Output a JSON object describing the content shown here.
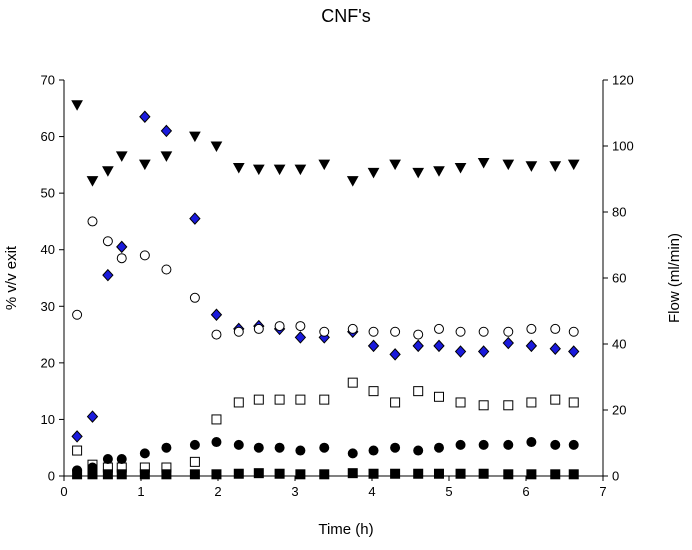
{
  "chart_data": {
    "type": "scatter",
    "title": "CNF's",
    "xlabel": "Time (h)",
    "ylabel": "% v/v exit",
    "y2label": "Flow (ml/min)",
    "xlim": [
      0,
      7
    ],
    "ylim": [
      0,
      70
    ],
    "y2lim": [
      0,
      120
    ],
    "xticks": [
      "0",
      "1",
      "2",
      "3",
      "4",
      "5",
      "6",
      "7"
    ],
    "yticks": [
      "0",
      "10",
      "20",
      "30",
      "40",
      "50",
      "60",
      "70"
    ],
    "y2ticks": [
      "0",
      "20",
      "40",
      "60",
      "80",
      "100",
      "120"
    ],
    "grid": false,
    "legend": "none",
    "accent_color": "#1a1adc",
    "series": [
      {
        "marker": "triangle-down-filled",
        "axis": "right",
        "color": "#000000",
        "points": [
          [
            0.17,
            112.5
          ],
          [
            0.37,
            89.5
          ],
          [
            0.57,
            92.5
          ],
          [
            0.75,
            97
          ],
          [
            1.05,
            94.5
          ],
          [
            1.33,
            97
          ],
          [
            1.7,
            103
          ],
          [
            1.98,
            100
          ],
          [
            2.27,
            93.5
          ],
          [
            2.53,
            93
          ],
          [
            2.8,
            93
          ],
          [
            3.07,
            93
          ],
          [
            3.38,
            94.5
          ],
          [
            3.75,
            89.5
          ],
          [
            4.02,
            92
          ],
          [
            4.3,
            94.5
          ],
          [
            4.6,
            92
          ],
          [
            4.87,
            92.5
          ],
          [
            5.15,
            93.5
          ],
          [
            5.45,
            95
          ],
          [
            5.77,
            94.5
          ],
          [
            6.07,
            94
          ],
          [
            6.38,
            94
          ],
          [
            6.62,
            94.5
          ]
        ]
      },
      {
        "marker": "diamond-filled",
        "axis": "left",
        "color": "#1a1adc",
        "points": [
          [
            0.17,
            7
          ],
          [
            0.37,
            10.5
          ],
          [
            0.57,
            35.5
          ],
          [
            0.75,
            40.5
          ],
          [
            1.05,
            63.5
          ],
          [
            1.33,
            61
          ],
          [
            1.7,
            45.5
          ],
          [
            1.98,
            28.5
          ],
          [
            2.27,
            26
          ],
          [
            2.53,
            26.5
          ],
          [
            2.8,
            26
          ],
          [
            3.07,
            24.5
          ],
          [
            3.38,
            24.5
          ],
          [
            3.75,
            25.5
          ],
          [
            4.02,
            23
          ],
          [
            4.3,
            21.5
          ],
          [
            4.6,
            23
          ],
          [
            4.87,
            23
          ],
          [
            5.15,
            22
          ],
          [
            5.45,
            22
          ],
          [
            5.77,
            23.5
          ],
          [
            6.07,
            23
          ],
          [
            6.38,
            22.5
          ],
          [
            6.62,
            22
          ]
        ]
      },
      {
        "marker": "circle-open",
        "axis": "left",
        "color": "#000000",
        "points": [
          [
            0.17,
            28.5
          ],
          [
            0.37,
            45
          ],
          [
            0.57,
            41.5
          ],
          [
            0.75,
            38.5
          ],
          [
            1.05,
            39
          ],
          [
            1.33,
            36.5
          ],
          [
            1.7,
            31.5
          ],
          [
            1.98,
            25
          ],
          [
            2.27,
            25.5
          ],
          [
            2.53,
            26
          ],
          [
            2.8,
            26.5
          ],
          [
            3.07,
            26.5
          ],
          [
            3.38,
            25.5
          ],
          [
            3.75,
            26
          ],
          [
            4.02,
            25.5
          ],
          [
            4.3,
            25.5
          ],
          [
            4.6,
            25
          ],
          [
            4.87,
            26
          ],
          [
            5.15,
            25.5
          ],
          [
            5.45,
            25.5
          ],
          [
            5.77,
            25.5
          ],
          [
            6.07,
            26
          ],
          [
            6.38,
            26
          ],
          [
            6.62,
            25.5
          ]
        ]
      },
      {
        "marker": "square-open",
        "axis": "left",
        "color": "#000000",
        "points": [
          [
            0.17,
            4.5
          ],
          [
            0.37,
            2
          ],
          [
            0.57,
            1.5
          ],
          [
            0.75,
            1.5
          ],
          [
            1.05,
            1.5
          ],
          [
            1.33,
            1.5
          ],
          [
            1.7,
            2.5
          ],
          [
            1.98,
            10
          ],
          [
            2.27,
            13
          ],
          [
            2.53,
            13.5
          ],
          [
            2.8,
            13.5
          ],
          [
            3.07,
            13.5
          ],
          [
            3.38,
            13.5
          ],
          [
            3.75,
            16.5
          ],
          [
            4.02,
            15
          ],
          [
            4.3,
            13
          ],
          [
            4.6,
            15
          ],
          [
            4.87,
            14
          ],
          [
            5.15,
            13
          ],
          [
            5.45,
            12.5
          ],
          [
            5.77,
            12.5
          ],
          [
            6.07,
            13
          ],
          [
            6.38,
            13.5
          ],
          [
            6.62,
            13
          ]
        ]
      },
      {
        "marker": "circle-filled",
        "axis": "left",
        "color": "#000000",
        "points": [
          [
            0.17,
            1
          ],
          [
            0.37,
            1.5
          ],
          [
            0.57,
            3
          ],
          [
            0.75,
            3
          ],
          [
            1.05,
            4
          ],
          [
            1.33,
            5
          ],
          [
            1.7,
            5.5
          ],
          [
            1.98,
            6
          ],
          [
            2.27,
            5.5
          ],
          [
            2.53,
            5
          ],
          [
            2.8,
            5
          ],
          [
            3.07,
            4.5
          ],
          [
            3.38,
            5
          ],
          [
            3.75,
            4
          ],
          [
            4.02,
            4.5
          ],
          [
            4.3,
            5
          ],
          [
            4.6,
            4.5
          ],
          [
            4.87,
            5
          ],
          [
            5.15,
            5.5
          ],
          [
            5.45,
            5.5
          ],
          [
            5.77,
            5.5
          ],
          [
            6.07,
            6
          ],
          [
            6.38,
            5.5
          ],
          [
            6.62,
            5.5
          ]
        ]
      },
      {
        "marker": "square-filled",
        "axis": "left",
        "color": "#000000",
        "points": [
          [
            0.17,
            0.3
          ],
          [
            0.37,
            0.3
          ],
          [
            0.57,
            0.3
          ],
          [
            0.75,
            0.3
          ],
          [
            1.05,
            0.3
          ],
          [
            1.33,
            0.3
          ],
          [
            1.7,
            0.3
          ],
          [
            1.98,
            0.3
          ],
          [
            2.27,
            0.4
          ],
          [
            2.53,
            0.5
          ],
          [
            2.8,
            0.4
          ],
          [
            3.07,
            0.3
          ],
          [
            3.38,
            0.3
          ],
          [
            3.75,
            0.5
          ],
          [
            4.02,
            0.4
          ],
          [
            4.3,
            0.4
          ],
          [
            4.6,
            0.4
          ],
          [
            4.87,
            0.4
          ],
          [
            5.15,
            0.4
          ],
          [
            5.45,
            0.4
          ],
          [
            5.77,
            0.3
          ],
          [
            6.07,
            0.3
          ],
          [
            6.38,
            0.3
          ],
          [
            6.62,
            0.3
          ]
        ]
      }
    ]
  }
}
